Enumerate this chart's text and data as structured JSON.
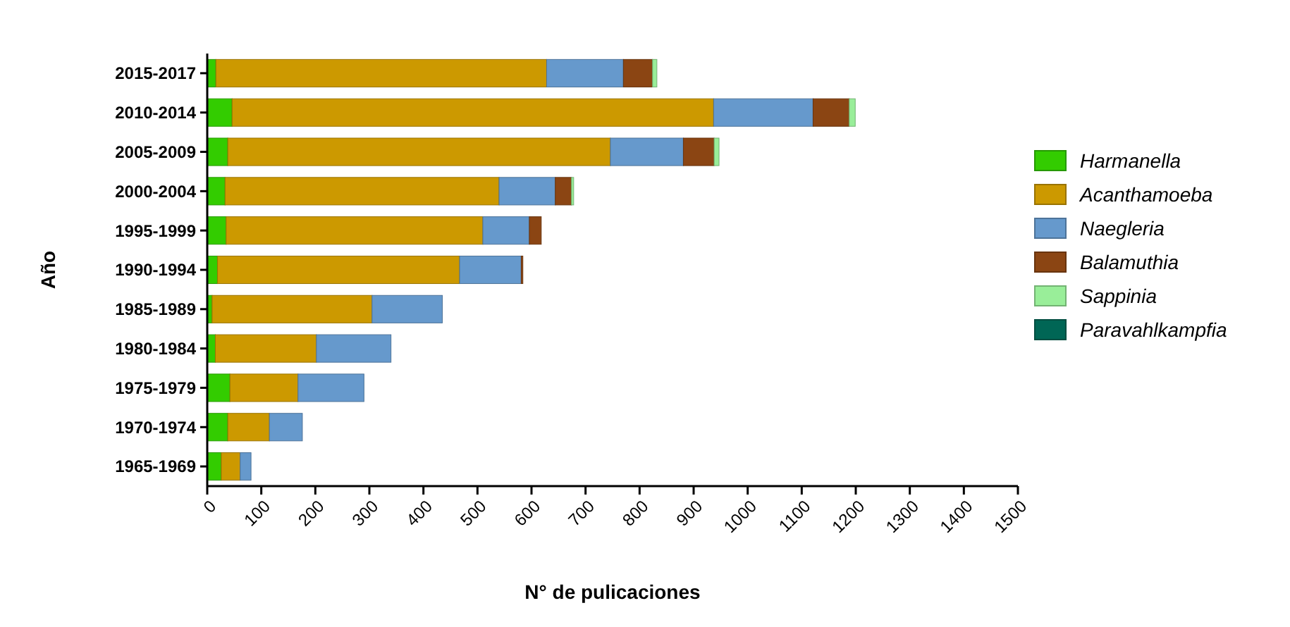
{
  "chart_data": {
    "type": "bar",
    "orientation": "horizontal",
    "stacked": true,
    "xlabel": "N° de pulicaciones",
    "ylabel": "Año",
    "categories": [
      "2015-2017",
      "2010-2014",
      "2005-2009",
      "2000-2004",
      "1995-1999",
      "1990-1994",
      "1985-1989",
      "1980-1984",
      "1975-1979",
      "1970-1974",
      "1965-1969"
    ],
    "series": [
      {
        "name": "Harmanella",
        "color": "#33cc00",
        "values": [
          16,
          46,
          38,
          33,
          35,
          19,
          9,
          15,
          42,
          38,
          26
        ]
      },
      {
        "name": "Acanthamoeba",
        "color": "#cc9900",
        "values": [
          612,
          891,
          708,
          507,
          475,
          448,
          296,
          187,
          126,
          77,
          35
        ]
      },
      {
        "name": "Naegleria",
        "color": "#6699cc",
        "values": [
          142,
          184,
          135,
          104,
          86,
          114,
          130,
          138,
          122,
          61,
          20
        ]
      },
      {
        "name": "Balamuthia",
        "color": "#8b4513",
        "values": [
          54,
          67,
          57,
          30,
          22,
          3,
          null,
          null,
          null,
          null,
          null
        ]
      },
      {
        "name": "Sappinia",
        "color": "#99ee99",
        "values": [
          8,
          11,
          9,
          4,
          null,
          null,
          null,
          null,
          null,
          null,
          null
        ]
      },
      {
        "name": "Paravahlkampfia",
        "color": "#006655",
        "values": [
          null,
          null,
          null,
          null,
          null,
          null,
          null,
          null,
          null,
          null,
          null
        ]
      }
    ],
    "xlim": [
      0,
      1500
    ],
    "xticks": [
      0,
      100,
      200,
      300,
      400,
      500,
      600,
      700,
      800,
      900,
      1000,
      1100,
      1200,
      1300,
      1400,
      1500
    ],
    "legend": "right",
    "grid": false
  }
}
